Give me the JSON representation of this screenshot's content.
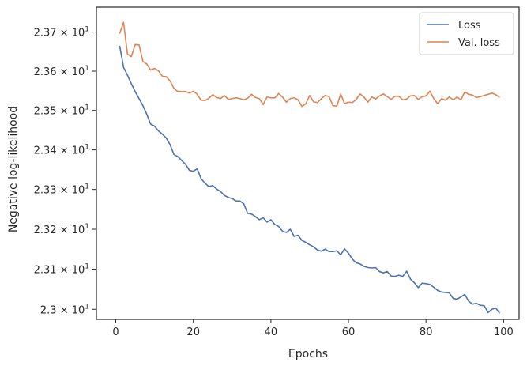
{
  "chart_data": {
    "type": "line",
    "title": "",
    "xlabel": "Epochs",
    "ylabel": "Negative log-likelihood",
    "xlim": [
      -5,
      104
    ],
    "ylim": [
      22.975,
      23.764
    ],
    "y_scale": "log",
    "xticks": [
      0,
      20,
      40,
      60,
      80,
      100
    ],
    "xtick_labels": [
      "0",
      "20",
      "40",
      "60",
      "80",
      "100"
    ],
    "yticks": [
      23.0,
      23.1,
      23.2,
      23.3,
      23.4,
      23.5,
      23.6,
      23.7
    ],
    "ytick_labels": [
      {
        "mantissa": "2.3",
        "exp": "1"
      },
      {
        "mantissa": "2.31",
        "exp": "1"
      },
      {
        "mantissa": "2.32",
        "exp": "1"
      },
      {
        "mantissa": "2.33",
        "exp": "1"
      },
      {
        "mantissa": "2.34",
        "exp": "1"
      },
      {
        "mantissa": "2.35",
        "exp": "1"
      },
      {
        "mantissa": "2.36",
        "exp": "1"
      },
      {
        "mantissa": "2.37",
        "exp": "1"
      }
    ],
    "grid": false,
    "legend": {
      "position": "top-right"
    },
    "x": [
      1,
      2,
      3,
      4,
      5,
      6,
      7,
      8,
      9,
      10,
      11,
      12,
      13,
      14,
      15,
      16,
      17,
      18,
      19,
      20,
      21,
      22,
      23,
      24,
      25,
      26,
      27,
      28,
      29,
      30,
      31,
      32,
      33,
      34,
      35,
      36,
      37,
      38,
      39,
      40,
      41,
      42,
      43,
      44,
      45,
      46,
      47,
      48,
      49,
      50,
      51,
      52,
      53,
      54,
      55,
      56,
      57,
      58,
      59,
      60,
      61,
      62,
      63,
      64,
      65,
      66,
      67,
      68,
      69,
      70,
      71,
      72,
      73,
      74,
      75,
      76,
      77,
      78,
      79,
      80,
      81,
      82,
      83,
      84,
      85,
      86,
      87,
      88,
      89,
      90,
      91,
      92,
      93,
      94,
      95,
      96,
      97,
      98,
      99
    ],
    "series": [
      {
        "name": "Loss",
        "color": "#4c72b0",
        "values": [
          23.665,
          23.61,
          23.59,
          23.568,
          23.548,
          23.53,
          23.512,
          23.49,
          23.465,
          23.46,
          23.448,
          23.44,
          23.43,
          23.413,
          23.388,
          23.383,
          23.373,
          23.363,
          23.348,
          23.346,
          23.352,
          23.327,
          23.316,
          23.307,
          23.31,
          23.301,
          23.295,
          23.285,
          23.28,
          23.277,
          23.271,
          23.271,
          23.264,
          23.24,
          23.238,
          23.232,
          23.224,
          23.229,
          23.218,
          23.224,
          23.212,
          23.207,
          23.195,
          23.192,
          23.2,
          23.182,
          23.185,
          23.172,
          23.167,
          23.161,
          23.156,
          23.148,
          23.145,
          23.15,
          23.144,
          23.144,
          23.146,
          23.136,
          23.151,
          23.14,
          23.125,
          23.116,
          23.113,
          23.107,
          23.104,
          23.103,
          23.104,
          23.094,
          23.091,
          23.094,
          23.083,
          23.082,
          23.085,
          23.082,
          23.095,
          23.075,
          23.066,
          23.054,
          23.065,
          23.064,
          23.062,
          23.055,
          23.047,
          23.043,
          23.042,
          23.041,
          23.027,
          23.025,
          23.031,
          23.037,
          23.02,
          23.013,
          23.015,
          23.01,
          23.009,
          22.992,
          23.0,
          23.003,
          22.99
        ]
      },
      {
        "name": "Val. loss",
        "color": "#dd8452",
        "values": [
          23.696,
          23.725,
          23.644,
          23.637,
          23.668,
          23.667,
          23.625,
          23.618,
          23.603,
          23.607,
          23.601,
          23.587,
          23.586,
          23.575,
          23.556,
          23.548,
          23.548,
          23.548,
          23.544,
          23.549,
          23.541,
          23.526,
          23.525,
          23.531,
          23.54,
          23.533,
          23.53,
          23.538,
          23.528,
          23.53,
          23.532,
          23.53,
          23.527,
          23.531,
          23.541,
          23.533,
          23.53,
          23.515,
          23.534,
          23.532,
          23.532,
          23.543,
          23.534,
          23.521,
          23.53,
          23.532,
          23.527,
          23.51,
          23.517,
          23.538,
          23.522,
          23.52,
          23.53,
          23.538,
          23.535,
          23.512,
          23.511,
          23.542,
          23.517,
          23.521,
          23.52,
          23.528,
          23.542,
          23.534,
          23.521,
          23.534,
          23.529,
          23.537,
          23.542,
          23.535,
          23.528,
          23.536,
          23.536,
          23.527,
          23.529,
          23.537,
          23.538,
          23.528,
          23.535,
          23.537,
          23.549,
          23.53,
          23.517,
          23.53,
          23.526,
          23.534,
          23.527,
          23.534,
          23.527,
          23.547,
          23.541,
          23.539,
          23.533,
          23.535,
          23.538,
          23.541,
          23.544,
          23.54,
          23.533
        ]
      }
    ]
  }
}
